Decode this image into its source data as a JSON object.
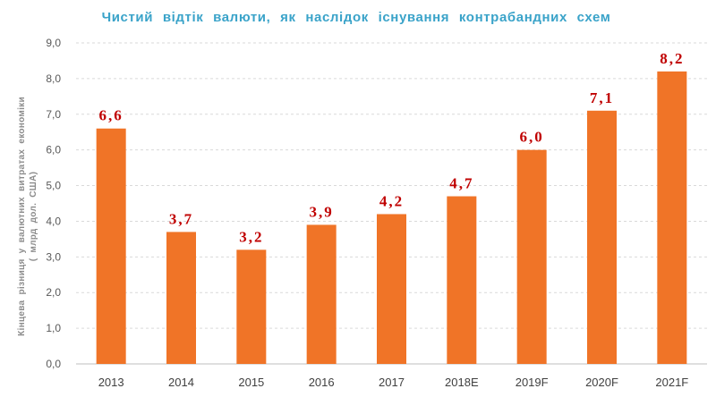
{
  "chart_data": {
    "type": "bar",
    "title": "Чистий відтік валюти, як наслідок існування контрабандних схем",
    "xlabel": "",
    "ylabel": "Кінцева різниця у валютних витратах економіки",
    "ylabel_unit": "( млрд дол. США)",
    "categories": [
      "2013",
      "2014",
      "2015",
      "2016",
      "2017",
      "2018E",
      "2019F",
      "2020F",
      "2021F"
    ],
    "values": [
      6.6,
      3.7,
      3.2,
      3.9,
      4.2,
      4.7,
      6.0,
      7.1,
      8.2
    ],
    "data_labels": [
      "6,6",
      "3,7",
      "3,2",
      "3,9",
      "4,2",
      "4,7",
      "6,0",
      "7,1",
      "8,2"
    ],
    "ylim": [
      0,
      9
    ],
    "yticks": [
      0,
      1,
      2,
      3,
      4,
      5,
      6,
      7,
      8,
      9
    ],
    "ytick_labels": [
      "0,0",
      "1,0",
      "2,0",
      "3,0",
      "4,0",
      "5,0",
      "6,0",
      "7,0",
      "8,0",
      "9,0"
    ],
    "grid": true,
    "legend": "none",
    "colors": {
      "bar": "#f07427",
      "title": "#3aa3c9",
      "data_label": "#c00000"
    }
  }
}
